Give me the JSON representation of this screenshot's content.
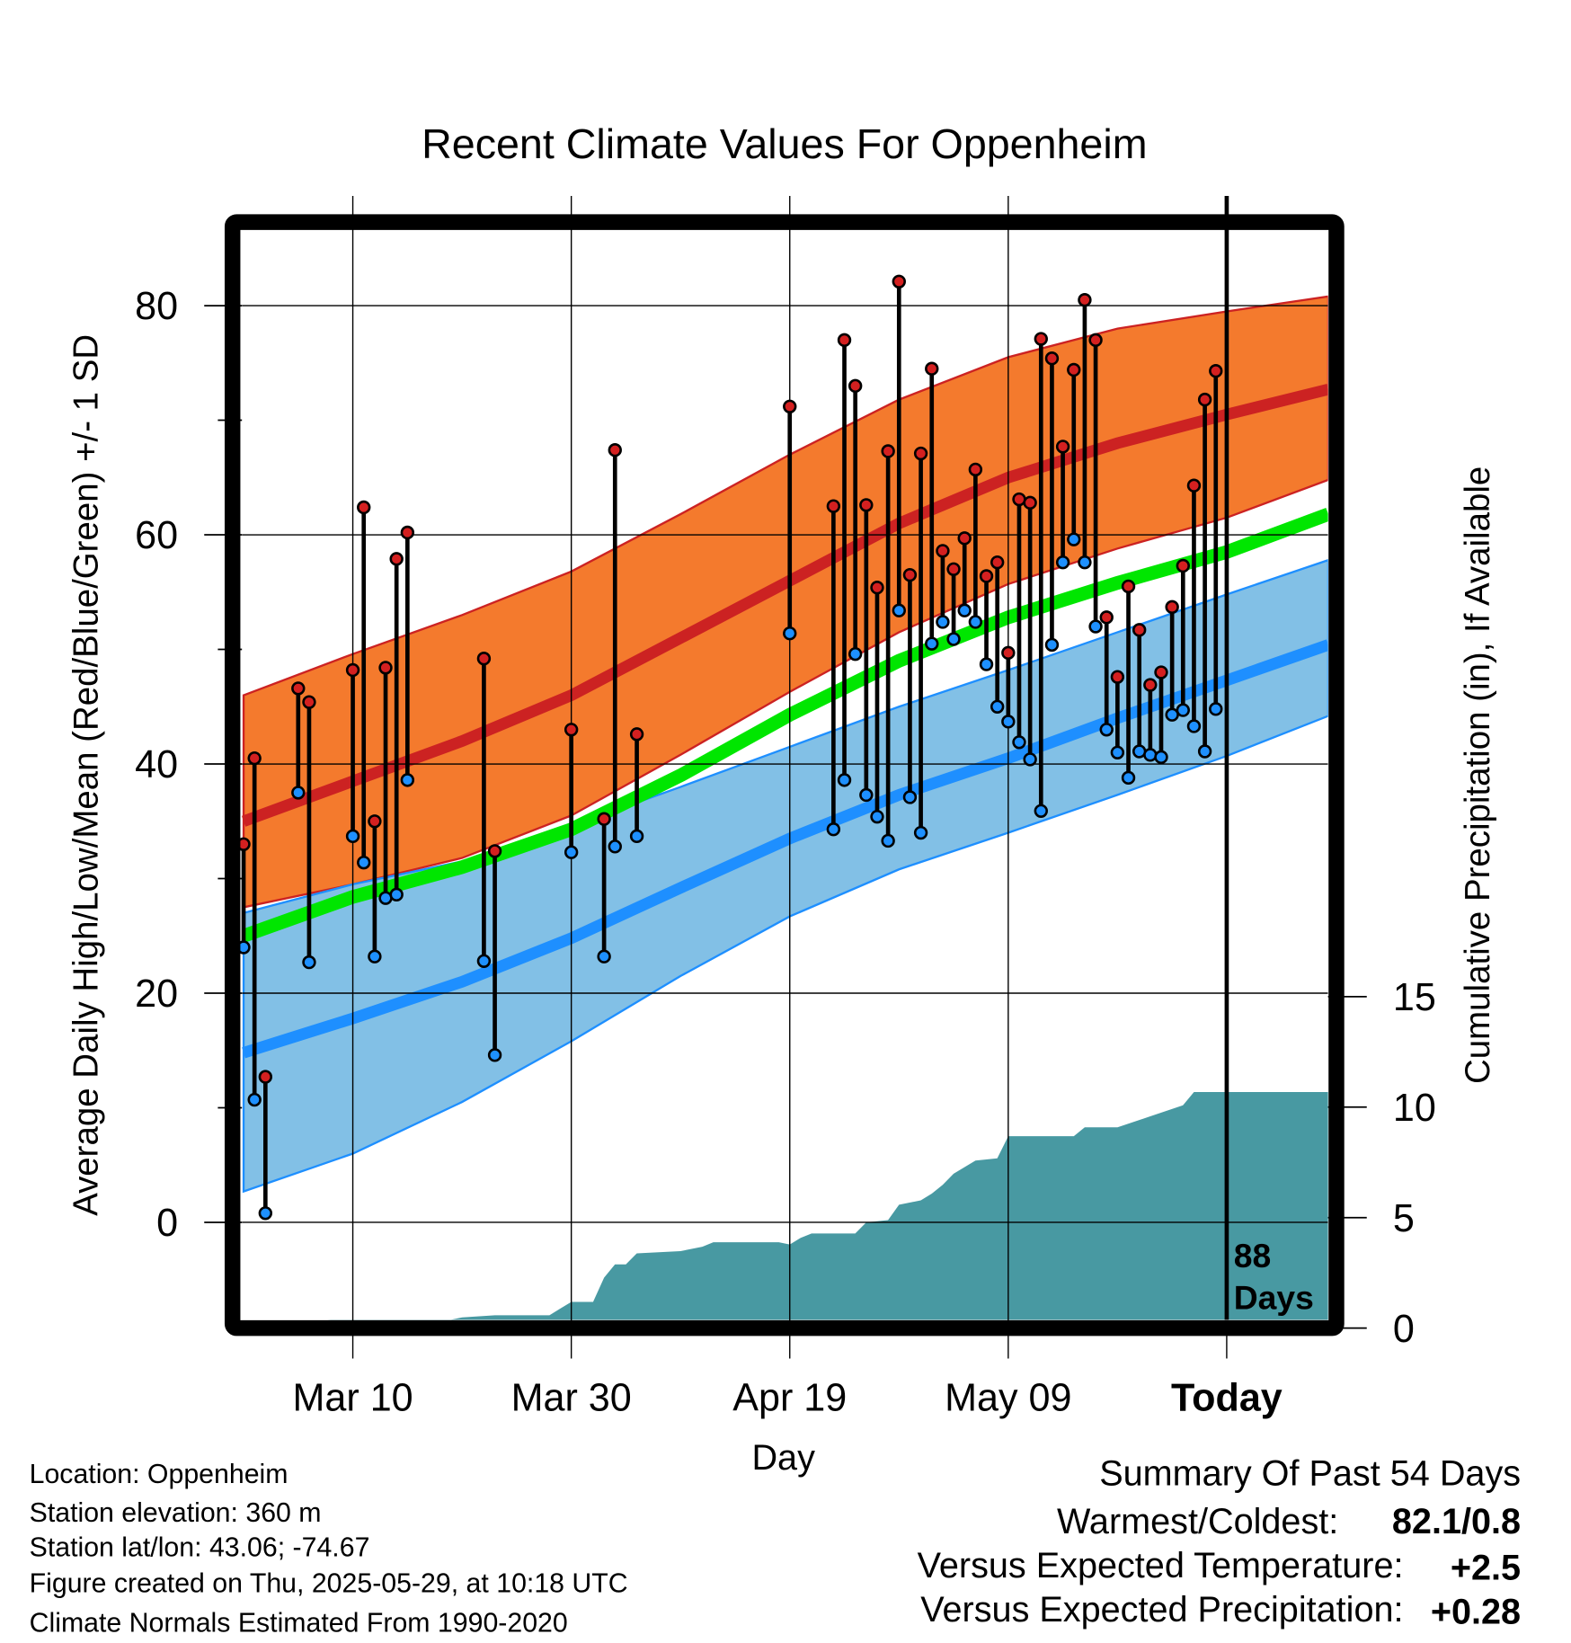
{
  "chart_data": {
    "type": "line",
    "title": "Recent Climate Values For Oppenheim",
    "xlabel": "Day",
    "ylabel": "Average Daily High/Low/Mean (Red/Blue/Green) +/- 1 SD",
    "y2label": "Cumulative Precipitation (in), If Available",
    "x_unit": "days since Mar 1",
    "xlim": [
      -1.1,
      98.3
    ],
    "ylim": [
      -8.5,
      86.5
    ],
    "y2lim": [
      0,
      49
    ],
    "x_ticks": [
      {
        "day": 9,
        "label": "Mar 10"
      },
      {
        "day": 29,
        "label": "Mar 30"
      },
      {
        "day": 49,
        "label": "Apr 19"
      },
      {
        "day": 69,
        "label": "May 09"
      },
      {
        "day": 89,
        "label": "Today"
      }
    ],
    "y_ticks": [
      0,
      20,
      40,
      60,
      80
    ],
    "y_minor_ticks": [
      10,
      30,
      50,
      70
    ],
    "y2_ticks": [
      0,
      5,
      10,
      15
    ],
    "today_day": 89,
    "today_annotation": [
      "88",
      "Days"
    ],
    "normals_days": [
      -1,
      9,
      19,
      29,
      39,
      49,
      59,
      69,
      79,
      89,
      98.3
    ],
    "normals": {
      "high_plus_sd": [
        46,
        49.6,
        53,
        56.8,
        61.8,
        67,
        71.8,
        75.5,
        78,
        79.5,
        80.8
      ],
      "high_mean": [
        35,
        38.5,
        42,
        46,
        51,
        56,
        61,
        65,
        68,
        70.5,
        72.7
      ],
      "high_minus_sd": [
        27.5,
        29.5,
        31.8,
        35.5,
        40.8,
        46.3,
        51.5,
        55.7,
        58.8,
        61.5,
        64.8
      ],
      "mean": [
        25,
        28.4,
        31,
        34.3,
        39,
        44.3,
        49,
        52.8,
        55.8,
        58.5,
        61.8
      ],
      "low_plus_sd": [
        27,
        29.5,
        31.5,
        34.6,
        38,
        41.5,
        45,
        48.2,
        51.5,
        54.8,
        57.8
      ],
      "low_mean": [
        14.8,
        17.8,
        21,
        24.8,
        29.2,
        33.5,
        37.3,
        40.5,
        44,
        47.3,
        50.4
      ],
      "low_minus_sd": [
        2.7,
        6,
        10.5,
        15.8,
        21.5,
        26.7,
        30.8,
        34,
        37.3,
        40.7,
        44.2
      ]
    },
    "observations": [
      {
        "day": -1,
        "high": 33.0,
        "low": 24.0
      },
      {
        "day": 0,
        "high": 40.5,
        "low": 10.7
      },
      {
        "day": 1,
        "high": 12.7,
        "low": 0.8
      },
      {
        "day": 4,
        "high": 46.6,
        "low": 37.5
      },
      {
        "day": 5,
        "high": 45.4,
        "low": 22.7
      },
      {
        "day": 9,
        "high": 48.2,
        "low": 33.7
      },
      {
        "day": 10,
        "high": 62.4,
        "low": 31.4
      },
      {
        "day": 11,
        "high": 35.0,
        "low": 23.2
      },
      {
        "day": 12,
        "high": 48.4,
        "low": 28.3
      },
      {
        "day": 13,
        "high": 57.9,
        "low": 28.6
      },
      {
        "day": 14,
        "high": 60.2,
        "low": 38.6
      },
      {
        "day": 21,
        "high": 49.2,
        "low": 22.8
      },
      {
        "day": 22,
        "high": 32.4,
        "low": 14.6
      },
      {
        "day": 29,
        "high": 43.0,
        "low": 32.3
      },
      {
        "day": 32,
        "high": 35.2,
        "low": 23.2
      },
      {
        "day": 33,
        "high": 67.4,
        "low": 32.8
      },
      {
        "day": 35,
        "high": 42.6,
        "low": 33.7
      },
      {
        "day": 49,
        "high": 71.2,
        "low": 51.4
      },
      {
        "day": 53,
        "high": 62.5,
        "low": 34.3
      },
      {
        "day": 54,
        "high": 77.0,
        "low": 38.6
      },
      {
        "day": 55,
        "high": 73.0,
        "low": 49.6
      },
      {
        "day": 56,
        "high": 62.6,
        "low": 37.3
      },
      {
        "day": 57,
        "high": 55.4,
        "low": 35.4
      },
      {
        "day": 58,
        "high": 67.3,
        "low": 33.3
      },
      {
        "day": 59,
        "high": 82.1,
        "low": 53.4
      },
      {
        "day": 60,
        "high": 56.5,
        "low": 37.1
      },
      {
        "day": 61,
        "high": 67.1,
        "low": 34.0
      },
      {
        "day": 62,
        "high": 74.5,
        "low": 50.5
      },
      {
        "day": 63,
        "high": 58.6,
        "low": 52.4
      },
      {
        "day": 64,
        "high": 57.0,
        "low": 50.9
      },
      {
        "day": 65,
        "high": 59.7,
        "low": 53.4
      },
      {
        "day": 66,
        "high": 65.7,
        "low": 52.4
      },
      {
        "day": 67,
        "high": 56.4,
        "low": 48.7
      },
      {
        "day": 68,
        "high": 57.6,
        "low": 45.0
      },
      {
        "day": 69,
        "high": 49.7,
        "low": 43.7
      },
      {
        "day": 70,
        "high": 63.1,
        "low": 41.9
      },
      {
        "day": 71,
        "high": 62.8,
        "low": 40.4
      },
      {
        "day": 72,
        "high": 77.1,
        "low": 35.9
      },
      {
        "day": 73,
        "high": 75.4,
        "low": 50.4
      },
      {
        "day": 74,
        "high": 67.7,
        "low": 57.6
      },
      {
        "day": 75,
        "high": 74.4,
        "low": 59.6
      },
      {
        "day": 76,
        "high": 80.5,
        "low": 57.6
      },
      {
        "day": 77,
        "high": 77.0,
        "low": 52.0
      },
      {
        "day": 78,
        "high": 52.8,
        "low": 43.0
      },
      {
        "day": 79,
        "high": 47.6,
        "low": 41.0
      },
      {
        "day": 80,
        "high": 55.5,
        "low": 38.8
      },
      {
        "day": 81,
        "high": 51.7,
        "low": 41.1
      },
      {
        "day": 82,
        "high": 46.9,
        "low": 40.8
      },
      {
        "day": 83,
        "high": 48.0,
        "low": 40.6
      },
      {
        "day": 84,
        "high": 53.7,
        "low": 44.3
      },
      {
        "day": 85,
        "high": 57.3,
        "low": 44.7
      },
      {
        "day": 86,
        "high": 64.3,
        "low": 43.3
      },
      {
        "day": 87,
        "high": 71.8,
        "low": 41.1
      },
      {
        "day": 88,
        "high": 74.3,
        "low": 44.8
      }
    ],
    "precip_cumulative": [
      [
        -1.1,
        0
      ],
      [
        4,
        0
      ],
      [
        7,
        0.1
      ],
      [
        18,
        0.1
      ],
      [
        19,
        0.2
      ],
      [
        22,
        0.3
      ],
      [
        27,
        0.3
      ],
      [
        28,
        0.6
      ],
      [
        29,
        0.9
      ],
      [
        31,
        0.9
      ],
      [
        32,
        2.0
      ],
      [
        33,
        2.6
      ],
      [
        34,
        2.6
      ],
      [
        35,
        3.1
      ],
      [
        39,
        3.2
      ],
      [
        41,
        3.4
      ],
      [
        42,
        3.6
      ],
      [
        48,
        3.6
      ],
      [
        49,
        3.5
      ],
      [
        50,
        3.8
      ],
      [
        51,
        4.0
      ],
      [
        55,
        4.0
      ],
      [
        56,
        4.5
      ],
      [
        58,
        4.6
      ],
      [
        59,
        5.3
      ],
      [
        61,
        5.5
      ],
      [
        62,
        5.8
      ],
      [
        63,
        6.2
      ],
      [
        64,
        6.7
      ],
      [
        66,
        7.3
      ],
      [
        68,
        7.4
      ],
      [
        69,
        8.4
      ],
      [
        75,
        8.4
      ],
      [
        76,
        8.8
      ],
      [
        79,
        8.8
      ],
      [
        82,
        9.3
      ],
      [
        85,
        9.8
      ],
      [
        86,
        10.4
      ],
      [
        98.3,
        10.4
      ]
    ],
    "colors": {
      "high_band": "#f47a2d",
      "high_line": "#cc2222",
      "mean_line": "#00e600",
      "low_band": "#82c0e6",
      "low_line": "#1e8fff",
      "precip": "#4899a2",
      "high_dot": "#d42020",
      "low_dot": "#1e90ff"
    }
  },
  "info": {
    "location": "Location: Oppenheim",
    "elevation": "Station elevation: 360 m",
    "latlon": "Station lat/lon: 43.06; -74.67",
    "created": "Figure created on Thu, 2025-05-29, at 10:18 UTC",
    "normals": "Climate Normals Estimated From 1990-2020"
  },
  "summary": {
    "title": "Summary Of Past 54 Days",
    "warmest_label": "Warmest/Coldest:",
    "warmest_value": "82.1/0.8",
    "temp_label": "Versus Expected Temperature:",
    "temp_value": "+2.5",
    "temp_color": "#d42a2a",
    "precip_label": "Versus Expected Precipitation:",
    "precip_value": "+0.28",
    "precip_color": "#22dd22"
  }
}
